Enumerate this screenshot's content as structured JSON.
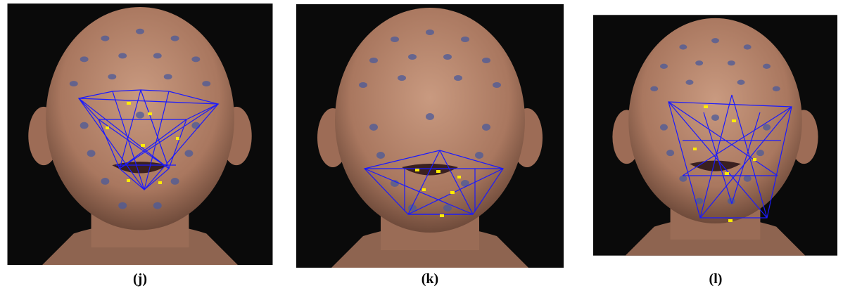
{
  "panels": [
    {
      "caption": "(j)"
    },
    {
      "caption": "(k)"
    },
    {
      "caption": "(l)"
    }
  ]
}
